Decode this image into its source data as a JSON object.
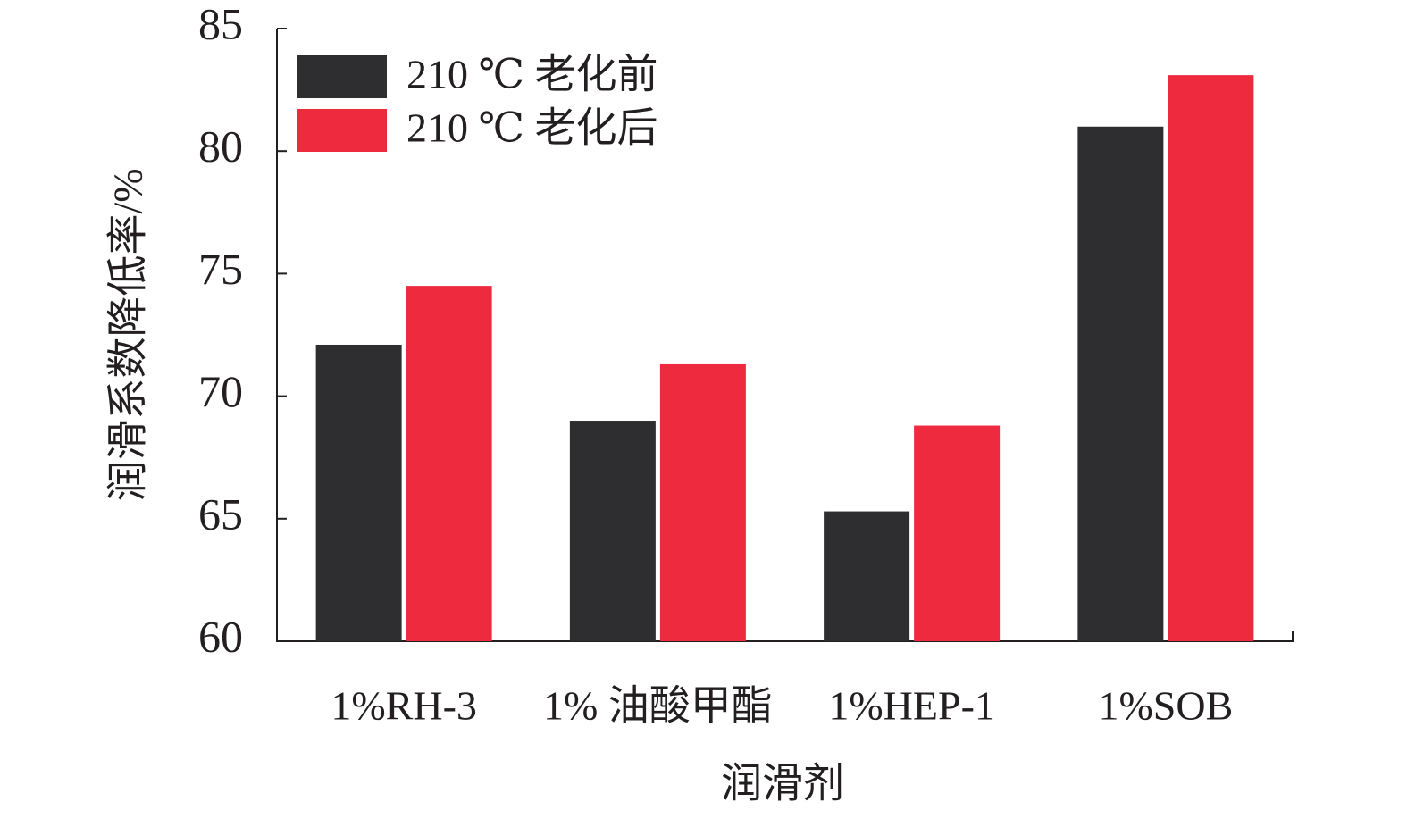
{
  "chart_data": {
    "type": "bar",
    "x_label": "润滑剂",
    "y_label": "润滑系数降低率/%",
    "categories": [
      "1%RH-3",
      "1% 油酸甲酯",
      "1%HEP-1",
      "1%SOB"
    ],
    "series": [
      {
        "name": "210 ℃ 老化前",
        "color": "#2e2d2f",
        "values": [
          72.1,
          69.0,
          65.3,
          81.0
        ]
      },
      {
        "name": "210 ℃ 老化后",
        "color": "#ee2a3e",
        "values": [
          74.5,
          71.3,
          68.8,
          83.1
        ]
      }
    ],
    "ylim": [
      60,
      85
    ],
    "yticks": [
      60,
      65,
      70,
      75,
      80,
      85
    ],
    "grid": false,
    "legend": "upper left"
  }
}
